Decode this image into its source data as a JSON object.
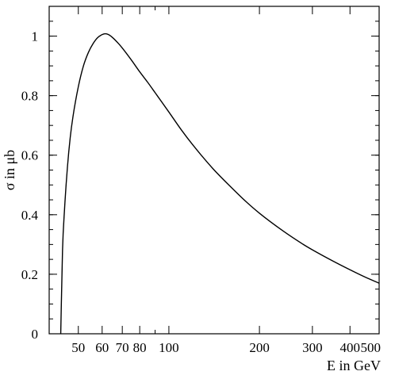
{
  "chart_data": {
    "type": "line",
    "title": "",
    "xlabel": "E in GeV",
    "ylabel": "σ in μb",
    "xscale": "log",
    "xlim": [
      40,
      500
    ],
    "ylim": [
      0,
      1.1
    ],
    "grid": false,
    "legend": "none",
    "x_ticks": [
      {
        "value": 50,
        "label": "50"
      },
      {
        "value": 60,
        "label": "60"
      },
      {
        "value": 70,
        "label": "70"
      },
      {
        "value": 80,
        "label": "80"
      },
      {
        "value": 100,
        "label": "100"
      },
      {
        "value": 200,
        "label": "200"
      },
      {
        "value": 300,
        "label": "300"
      },
      {
        "value": 400,
        "label": "400"
      },
      {
        "value": 500,
        "label": "500"
      }
    ],
    "x_minor_ticks": [
      90
    ],
    "y_ticks": [
      {
        "value": 0,
        "label": "0"
      },
      {
        "value": 0.2,
        "label": "0.2"
      },
      {
        "value": 0.4,
        "label": "0.4"
      },
      {
        "value": 0.6,
        "label": "0.6"
      },
      {
        "value": 0.8,
        "label": "0.8"
      },
      {
        "value": 1.0,
        "label": "1"
      }
    ],
    "y_minor_step": 0.05,
    "series": [
      {
        "color": "#000000",
        "x": [
          43.7,
          44.3,
          45,
          46,
          47,
          48,
          50,
          52,
          54,
          56,
          58,
          60,
          61.5,
          63,
          65,
          68,
          70,
          75,
          80,
          85,
          90,
          100,
          110,
          120,
          140,
          160,
          180,
          200,
          240,
          280,
          300,
          350,
          400,
          450,
          500
        ],
        "y": [
          0.0,
          0.28,
          0.42,
          0.56,
          0.66,
          0.73,
          0.83,
          0.9,
          0.945,
          0.975,
          0.995,
          1.005,
          1.008,
          1.005,
          0.995,
          0.975,
          0.96,
          0.92,
          0.88,
          0.845,
          0.81,
          0.745,
          0.685,
          0.635,
          0.555,
          0.495,
          0.445,
          0.405,
          0.345,
          0.3,
          0.282,
          0.245,
          0.215,
          0.19,
          0.17
        ]
      }
    ]
  }
}
